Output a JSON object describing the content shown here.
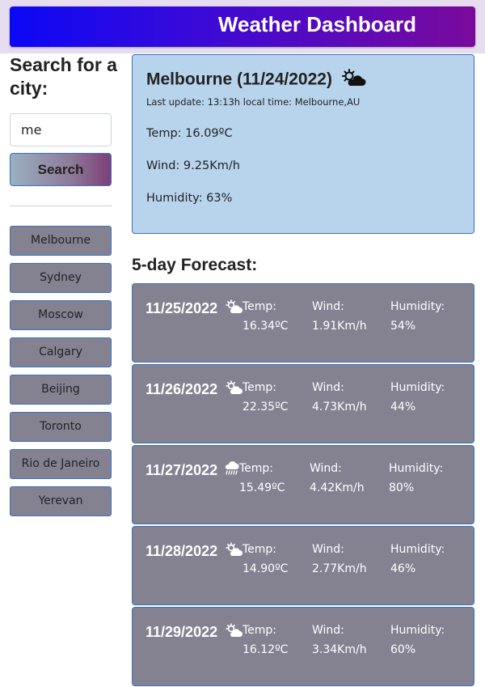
{
  "header": {
    "title": "Weather Dashboard"
  },
  "search": {
    "title": "Search for a city:",
    "input_value": "me",
    "button_label": "Search"
  },
  "history": [
    "Melbourne",
    "Sydney",
    "Moscow",
    "Calgary",
    "Beijing",
    "Toronto",
    "Rio de Janeiro",
    "Yerevan"
  ],
  "current": {
    "city_date": "Melbourne (11/24/2022)",
    "icon": "partly-cloudy-day-icon",
    "update": "Last update: 13:13h local time: Melbourne,AU",
    "temp": "Temp: 16.09ºC",
    "wind": "Wind: 9.25Km/h",
    "humidity": "Humidity: 63%"
  },
  "forecast_title": "5-day Forecast:",
  "forecast": [
    {
      "date": "11/25/2022",
      "icon": "partly-cloudy-icon",
      "temp_label": "Temp:",
      "temp": "16.34ºC",
      "wind_label": "Wind:",
      "wind": "1.91Km/h",
      "humidity_label": "Humidity:",
      "humidity": "54%"
    },
    {
      "date": "11/26/2022",
      "icon": "partly-cloudy-icon",
      "temp_label": "Temp:",
      "temp": "22.35ºC",
      "wind_label": "Wind:",
      "wind": "4.73Km/h",
      "humidity_label": "Humidity:",
      "humidity": "44%"
    },
    {
      "date": "11/27/2022",
      "icon": "rain-cloud-icon",
      "temp_label": "Temp:",
      "temp": "15.49ºC",
      "wind_label": "Wind:",
      "wind": "4.42Km/h",
      "humidity_label": "Humidity:",
      "humidity": "80%"
    },
    {
      "date": "11/28/2022",
      "icon": "partly-cloudy-icon",
      "temp_label": "Temp:",
      "temp": "14.90ºC",
      "wind_label": "Wind:",
      "wind": "2.77Km/h",
      "humidity_label": "Humidity:",
      "humidity": "46%"
    },
    {
      "date": "11/29/2022",
      "icon": "partly-cloudy-icon",
      "temp_label": "Temp:",
      "temp": "16.12ºC",
      "wind_label": "Wind:",
      "wind": "3.34Km/h",
      "humidity_label": "Humidity:",
      "humidity": "60%"
    }
  ],
  "colors": {
    "header_gradient_start": "#0b08f6",
    "header_gradient_end": "#7a0a9c",
    "current_card": "#b8d4ec",
    "forecast_card": "#848291",
    "border_accent": "#3b6fc2"
  }
}
